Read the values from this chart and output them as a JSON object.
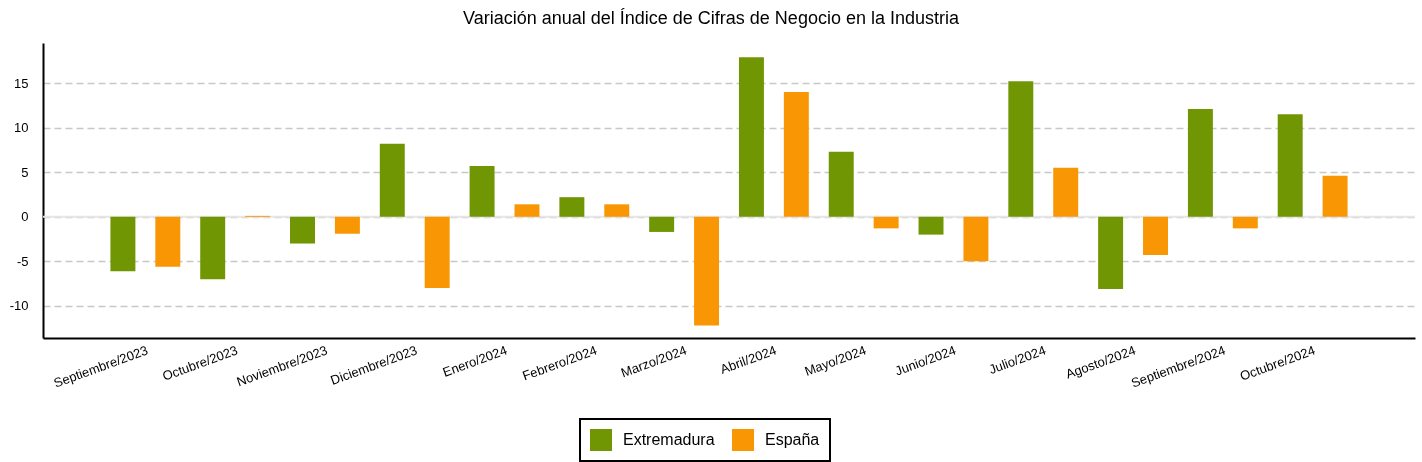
{
  "chart_data": {
    "type": "bar",
    "title": "Variación anual del Índice de Cifras de Negocio en la Industria",
    "categories": [
      "Septiembre/2023",
      "Octubre/2023",
      "Noviembre/2023",
      "Diciembre/2023",
      "Enero/2024",
      "Febrero/2024",
      "Marzo/2024",
      "Abril/2024",
      "Mayo/2024",
      "Junio/2024",
      "Julio/2024",
      "Agosto/2024",
      "Septiembre/2024",
      "Octubre/2024"
    ],
    "series": [
      {
        "name": "Extremadura",
        "color": "#709604",
        "values": [
          -6.1,
          -7.0,
          -3.0,
          8.2,
          5.7,
          2.2,
          -1.7,
          17.9,
          7.3,
          -2.0,
          15.2,
          -8.1,
          12.1,
          11.5
        ]
      },
      {
        "name": "España",
        "color": "#f99604",
        "values": [
          -5.6,
          0.1,
          -1.9,
          -8.0,
          1.4,
          1.4,
          -12.2,
          14.0,
          -1.3,
          -5.0,
          5.5,
          -4.3,
          -1.3,
          4.6
        ]
      }
    ],
    "ylim": [
      -13.6,
      19.5
    ],
    "yticks": [
      -10,
      -5,
      0,
      5,
      10,
      15
    ],
    "grid": "y",
    "legend": "bottom",
    "ref_lines": [
      {
        "axis": "y",
        "value": 0,
        "color": "#e6e6e6"
      }
    ]
  }
}
